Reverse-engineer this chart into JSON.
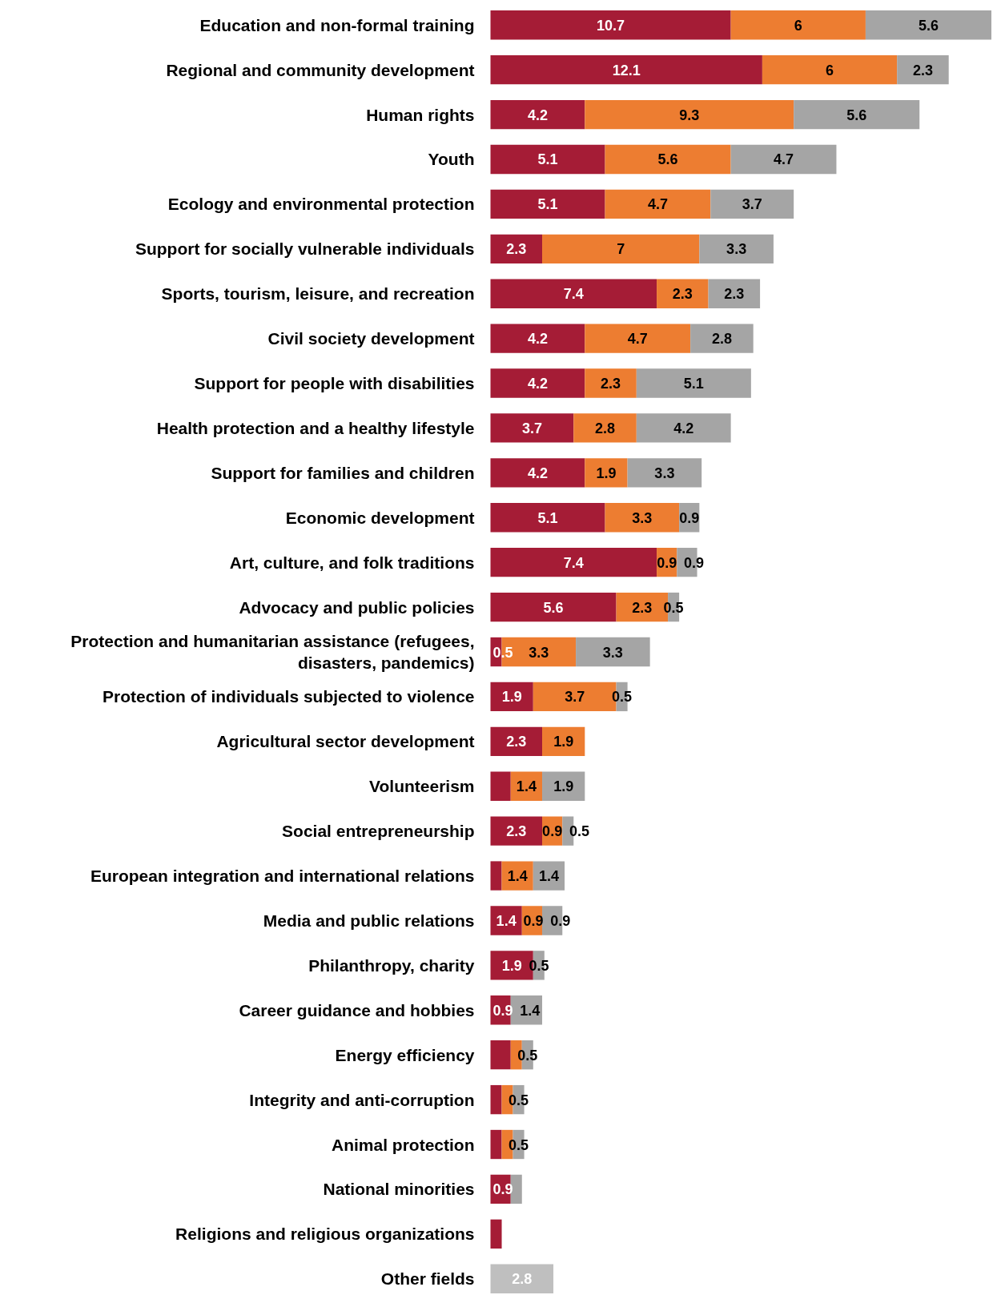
{
  "chart_data": {
    "type": "bar",
    "orientation": "horizontal",
    "stacked": true,
    "categories": [
      "Education and non-formal training",
      "Regional and community development",
      "Human rights",
      "Youth",
      "Ecology and environmental protection",
      "Support for socially vulnerable individuals",
      "Sports, tourism, leisure, and recreation",
      "Civil society development",
      "Support for people with disabilities",
      "Health protection and a healthy lifestyle",
      "Support for families and children",
      "Economic development",
      "Art, culture, and folk traditions",
      "Advocacy and public policies",
      "Protection and humanitarian assistance (refugees, disasters, pandemics)",
      "Protection of individuals subjected to violence",
      "Agricultural sector development",
      "Volunteerism",
      "Social entrepreneurship",
      "European integration and international relations",
      "Media and public relations",
      "Philanthropy, charity",
      "Career guidance and hobbies",
      "Energy efficiency",
      "Integrity and anti-corruption",
      "Animal protection",
      "National minorities",
      "Religions and religious organizations",
      "Other fields"
    ],
    "series": [
      {
        "color": "#a51c36",
        "values": [
          10.7,
          12.1,
          4.2,
          5.1,
          5.1,
          2.3,
          7.4,
          4.2,
          4.2,
          3.7,
          4.2,
          5.1,
          7.4,
          5.6,
          0.5,
          1.9,
          2.3,
          0.9,
          2.3,
          0.5,
          1.4,
          1.9,
          0.9,
          0.9,
          0.5,
          0.5,
          0.9,
          0.5,
          null
        ],
        "value_labels": [
          "10.7",
          "12.1",
          "4.2",
          "5.1",
          "5.1",
          "2.3",
          "7.4",
          "4.2",
          "4.2",
          "3.7",
          "4.2",
          "5.1",
          "7.4",
          "5.6",
          "0.5",
          "1.9",
          "2.3",
          null,
          "2.3",
          null,
          "1.4",
          "1.9",
          "0.9",
          null,
          null,
          null,
          "0.9",
          null,
          null
        ]
      },
      {
        "color": "#ed7d31",
        "values": [
          6,
          6,
          9.3,
          5.6,
          4.7,
          7,
          2.3,
          4.7,
          2.3,
          2.8,
          1.9,
          3.3,
          0.9,
          2.3,
          3.3,
          3.7,
          1.9,
          1.4,
          0.9,
          1.4,
          0.9,
          null,
          null,
          0.5,
          0.5,
          0.5,
          null,
          null,
          null
        ],
        "value_labels": [
          "6",
          "6",
          "9.3",
          "5.6",
          "4.7",
          "7",
          "2.3",
          "4.7",
          "2.3",
          "2.8",
          "1.9",
          "3.3",
          "0.9",
          "2.3",
          "3.3",
          "3.7",
          "1.9",
          "1.4",
          "0.9",
          "1.4",
          "0.9",
          null,
          null,
          null,
          null,
          null,
          null,
          null,
          null
        ]
      },
      {
        "color": "#a5a5a5",
        "colors": [
          "#a5a5a5",
          "#a5a5a5",
          "#a5a5a5",
          "#a5a5a5",
          "#a5a5a5",
          "#a5a5a5",
          "#a5a5a5",
          "#a5a5a5",
          "#a5a5a5",
          "#a5a5a5",
          "#a5a5a5",
          "#a5a5a5",
          "#a5a5a5",
          "#a5a5a5",
          "#a5a5a5",
          "#a5a5a5",
          "#a5a5a5",
          "#a5a5a5",
          "#a5a5a5",
          "#a5a5a5",
          "#a5a5a5",
          "#a5a5a5",
          "#a5a5a5",
          "#a5a5a5",
          "#a5a5a5",
          "#a5a5a5",
          "#a5a5a5",
          "#a5a5a5",
          "#bfbfbf"
        ],
        "values": [
          5.6,
          2.3,
          5.6,
          4.7,
          3.7,
          3.3,
          2.3,
          2.8,
          5.1,
          4.2,
          3.3,
          0.9,
          0.9,
          0.5,
          3.3,
          0.5,
          null,
          1.9,
          0.5,
          1.4,
          0.9,
          0.5,
          1.4,
          0.5,
          0.5,
          0.5,
          0.5,
          null,
          2.8
        ],
        "value_labels": [
          "5.6",
          "2.3",
          "5.6",
          "4.7",
          "3.7",
          "3.3",
          "2.3",
          "2.8",
          "5.1",
          "4.2",
          "3.3",
          "0.9",
          "0.9",
          "0.5",
          "3.3",
          "0.5",
          null,
          "1.9",
          "0.5",
          "1.4",
          "0.9",
          "0.5",
          "1.4",
          "0.5",
          "0.5",
          "0.5",
          null,
          null,
          "2.8"
        ]
      }
    ]
  }
}
